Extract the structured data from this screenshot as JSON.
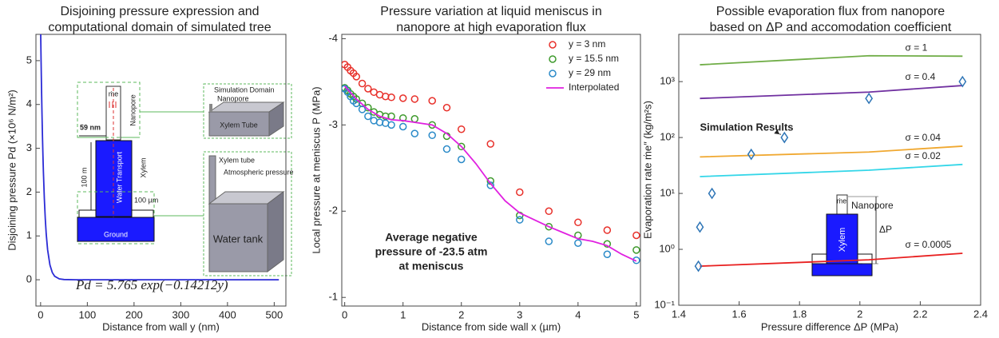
{
  "chart_data": [
    {
      "type": "line",
      "title": [
        "Disjoining pressure expression and",
        "computational domain of simulated tree"
      ],
      "x_label": "Distance from wall y (nm)",
      "y_label": "Disjoining pressure Pd (×10⁶ N/m²)",
      "xlim": [
        -10,
        525
      ],
      "xticks": [
        0,
        100,
        200,
        300,
        400,
        500
      ],
      "ylim": [
        -0.6,
        5.6
      ],
      "yticks": [
        0,
        1,
        2,
        3,
        4,
        5
      ],
      "series": [
        {
          "color": "#2b2bd6",
          "x": [
            0,
            1,
            2,
            3,
            4,
            5,
            6,
            8,
            10,
            12,
            15,
            20,
            25,
            30,
            40,
            50,
            75,
            100,
            200,
            300,
            400,
            510
          ],
          "values": [
            5.765,
            5.001,
            4.339,
            3.764,
            3.265,
            2.833,
            2.457,
            1.849,
            1.392,
            1.048,
            0.684,
            0.336,
            0.165,
            0.081,
            0.02,
            0.005,
            0,
            0,
            0,
            0,
            0,
            0
          ]
        }
      ],
      "equation": "Pd = 5.765 exp(−0.14212y)",
      "annotations": [
        "Nanopore",
        "59 nm",
        "100 m",
        "Water Transport",
        "Xylem",
        "100 µm",
        "Ground",
        "Simulation Domain",
        "Nanopore",
        "Xylem Tube",
        "Xylem tube",
        "Atmospheric pressure",
        "Water tank",
        "ṁe"
      ]
    },
    {
      "type": "scatter",
      "title": [
        "Pressure variation at liquid meniscus in",
        "nanopore at high evaporation flux"
      ],
      "x_label": "Distance from side wall x (µm)",
      "y_label": "Local pressure at meniscus P (MPa)",
      "xlim": [
        -0.05,
        5.07
      ],
      "xticks": [
        0,
        1,
        2,
        3,
        4,
        5
      ],
      "ylim": [
        -0.9,
        -4.05
      ],
      "yticks": [
        -1,
        -2,
        -3,
        -4
      ],
      "legend": "upper right",
      "x": [
        0,
        0.05,
        0.1,
        0.15,
        0.2,
        0.3,
        0.4,
        0.5,
        0.6,
        0.7,
        0.8,
        1.0,
        1.2,
        1.5,
        1.75,
        2.0,
        2.5,
        3.0,
        3.5,
        4.0,
        4.5,
        5.0
      ],
      "series": [
        {
          "name": "y = 3 nm",
          "color": "#e8302a",
          "values": [
            -3.7,
            -3.67,
            -3.63,
            -3.6,
            -3.56,
            -3.48,
            -3.42,
            -3.38,
            -3.35,
            -3.33,
            -3.32,
            -3.31,
            -3.3,
            -3.28,
            -3.2,
            -2.95,
            -2.78,
            -2.22,
            -2.0,
            -1.87,
            -1.78,
            -1.72
          ]
        },
        {
          "name": "y = 15.5 nm",
          "color": "#3e9a2c",
          "values": [
            -3.43,
            -3.4,
            -3.36,
            -3.33,
            -3.3,
            -3.25,
            -3.2,
            -3.15,
            -3.12,
            -3.1,
            -3.1,
            -3.08,
            -3.07,
            -3.0,
            -2.87,
            -2.75,
            -2.35,
            -1.95,
            -1.82,
            -1.72,
            -1.62,
            -1.55
          ]
        },
        {
          "name": "y = 29 nm",
          "color": "#2a8ac8",
          "values": [
            -3.42,
            -3.38,
            -3.33,
            -3.28,
            -3.25,
            -3.18,
            -3.1,
            -3.05,
            -3.03,
            -3.02,
            -3.0,
            -2.98,
            -2.9,
            -2.88,
            -2.72,
            -2.6,
            -2.3,
            -1.9,
            -1.65,
            -1.63,
            -1.5,
            -1.43
          ]
        },
        {
          "name": "Interpolated",
          "color": "#e020e0",
          "marker": "line",
          "x": [
            0,
            0.2,
            0.4,
            0.6,
            0.8,
            1.0,
            1.2,
            1.5,
            1.75,
            2.0,
            2.25,
            2.5,
            2.75,
            3.0,
            3.25,
            3.5,
            3.75,
            4.0,
            4.25,
            4.5,
            4.75,
            5.0
          ],
          "values": [
            -3.45,
            -3.3,
            -3.18,
            -3.1,
            -3.06,
            -3.05,
            -3.03,
            -3.0,
            -2.9,
            -2.75,
            -2.55,
            -2.32,
            -2.12,
            -1.98,
            -1.9,
            -1.82,
            -1.75,
            -1.68,
            -1.65,
            -1.6,
            -1.5,
            -1.42
          ]
        }
      ],
      "annotation": [
        "Average negative",
        "pressure of -23.5 atm",
        "at meniscus"
      ]
    },
    {
      "type": "line",
      "title": [
        "Possible evaporation flux from nanopore",
        "based on ΔP and accomodation coefficient"
      ],
      "x_label": "Pressure difference ΔP (MPa)",
      "y_label": "Evaporation rate ṁe″ (kg/m²s)",
      "xlim": [
        1.4,
        2.4
      ],
      "xticks": [
        1.4,
        1.6,
        1.8,
        2,
        2.2,
        2.4
      ],
      "ylim": [
        0.1,
        7000
      ],
      "log_y": true,
      "yticks": [
        {
          "value": 0.1,
          "label": "10⁻¹"
        },
        {
          "value": 1,
          "label": "10⁰"
        },
        {
          "value": 10,
          "label": "10¹"
        },
        {
          "value": 100,
          "label": "10²"
        },
        {
          "value": 1000,
          "label": "10³"
        }
      ],
      "series_labels": "inline",
      "series": [
        {
          "name": "σ = 1",
          "color": "#70ad47",
          "x": [
            1.47,
            2.03,
            2.34
          ],
          "values": [
            2000,
            2900,
            2850
          ]
        },
        {
          "name": "σ = 0.4",
          "color": "#7030a0",
          "x": [
            1.47,
            2.03,
            2.34
          ],
          "values": [
            500,
            650,
            850
          ]
        },
        {
          "name": "σ = 0.04",
          "color": "#f0a830",
          "x": [
            1.47,
            2.03,
            2.34
          ],
          "values": [
            45,
            55,
            70
          ]
        },
        {
          "name": "σ = 0.02",
          "color": "#33d6e8",
          "x": [
            1.47,
            2.03,
            2.34
          ],
          "values": [
            20,
            26,
            33
          ]
        },
        {
          "name": "σ = 0.0005",
          "color": "#e82020",
          "x": [
            1.47,
            2.03,
            2.34
          ],
          "values": [
            0.5,
            0.65,
            0.85
          ]
        },
        {
          "name": "Simulation Results",
          "color": "#2e75b6",
          "marker": "diamond",
          "x": [
            1.465,
            1.47,
            1.51,
            1.64,
            1.75,
            2.03,
            2.34
          ],
          "values": [
            0.5,
            2.5,
            10,
            50,
            100,
            500,
            1000
          ]
        }
      ],
      "annotations": [
        "ṁe",
        "Nanopore",
        "ΔP",
        "Xylem"
      ]
    }
  ]
}
